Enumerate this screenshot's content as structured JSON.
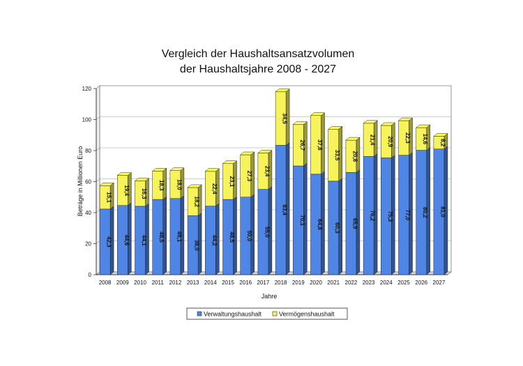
{
  "chart_data": {
    "type": "bar",
    "stacked": true,
    "title": [
      "Vergleich der Haushaltsansatzvolumen",
      "der Haushaltsjahre 2008 - 2027"
    ],
    "xlabel": "Jahre",
    "ylabel": "Beträge in Millionen Euro",
    "ylim": [
      0,
      120
    ],
    "yticks": [
      0,
      20,
      40,
      60,
      80,
      100,
      120
    ],
    "grid": true,
    "legend_position": "bottom",
    "categories": [
      "2008",
      "2009",
      "2010",
      "2011",
      "2012",
      "2013",
      "2014",
      "2015",
      "2016",
      "2017",
      "2018",
      "2019",
      "2020",
      "2021",
      "2022",
      "2023",
      "2024",
      "2025",
      "2026",
      "2027"
    ],
    "series": [
      {
        "name": "Verwaltungshaushalt",
        "color": "#4f86e6",
        "values": [
          42.3,
          44.6,
          44.1,
          48.5,
          49.1,
          38.0,
          44.2,
          48.5,
          50.0,
          55.0,
          83.4,
          70.1,
          64.8,
          60.3,
          65.9,
          76.2,
          75.3,
          77.0,
          80.2,
          81.0
        ],
        "labels": [
          "42,3",
          "44,6",
          "44,1",
          "48,5",
          "49,1",
          "38,0",
          "44,2",
          "48,5",
          "50,0",
          "55,0",
          "83,4",
          "70,1",
          "64,8",
          "60,3",
          "65,9",
          "76,2",
          "75,3",
          "77,0",
          "80,2",
          "81,0"
        ]
      },
      {
        "name": "Vermögenshaushalt",
        "color": "#f7f35a",
        "values": [
          15.1,
          19.4,
          16.3,
          18.3,
          18.0,
          18.2,
          22.4,
          23.1,
          27.3,
          23.4,
          34.5,
          26.7,
          37.8,
          33.5,
          20.8,
          21.4,
          20.9,
          22.3,
          14.6,
          8.2
        ],
        "labels": [
          "15,1",
          "19,4",
          "16,3",
          "18,3",
          "18,0",
          "18,2",
          "22,4",
          "23,1",
          "27,3",
          "23,4",
          "34,5",
          "26,7",
          "37,8",
          "33,5",
          "20,8",
          "21,4",
          "20,9",
          "22,3",
          "14,6",
          "8,2"
        ]
      }
    ]
  }
}
